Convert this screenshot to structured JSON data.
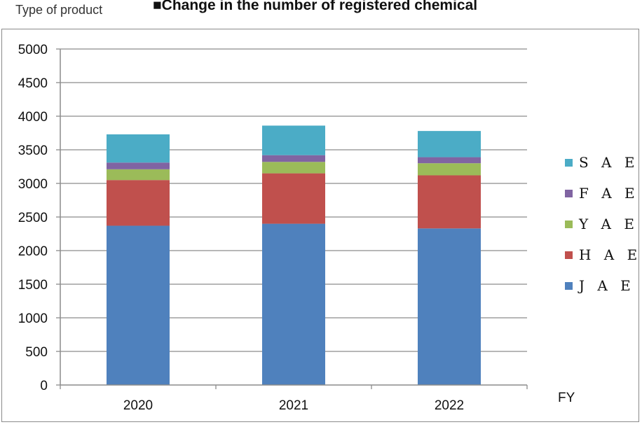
{
  "header": {
    "y_axis_caption": "Type of product",
    "title": "■Change in the number of registered chemical"
  },
  "chart_data": {
    "type": "bar",
    "stacked": true,
    "categories": [
      "2020",
      "2021",
      "2022"
    ],
    "xlabel": "FY",
    "ylabel": "Type of product",
    "ylim": [
      0,
      5000
    ],
    "yticks": [
      0,
      500,
      1000,
      1500,
      2000,
      2500,
      3000,
      3500,
      4000,
      4500,
      5000
    ],
    "grid": true,
    "legend_position": "right",
    "series": [
      {
        "name": "J A E",
        "color": "#4f81bd",
        "values": [
          2370,
          2400,
          2330
        ]
      },
      {
        "name": "H A E",
        "color": "#c0504d",
        "values": [
          680,
          750,
          790
        ]
      },
      {
        "name": "Y A E",
        "color": "#9bbb59",
        "values": [
          160,
          170,
          180
        ]
      },
      {
        "name": "F A E",
        "color": "#8064a2",
        "values": [
          100,
          100,
          90
        ]
      },
      {
        "name": "S A E",
        "color": "#4bacc6",
        "values": [
          420,
          440,
          390
        ]
      }
    ]
  }
}
